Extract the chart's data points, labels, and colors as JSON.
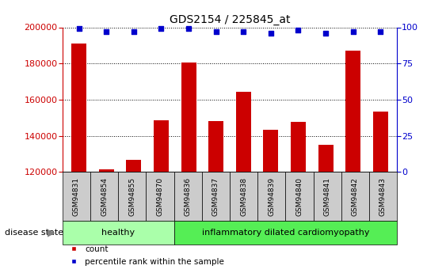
{
  "title": "GDS2154 / 225845_at",
  "categories": [
    "GSM94831",
    "GSM94854",
    "GSM94855",
    "GSM94870",
    "GSM94836",
    "GSM94837",
    "GSM94838",
    "GSM94839",
    "GSM94840",
    "GSM94841",
    "GSM94842",
    "GSM94843"
  ],
  "counts": [
    191000,
    121500,
    126500,
    148500,
    180500,
    148000,
    164500,
    143500,
    147500,
    135000,
    187000,
    153500
  ],
  "percentiles": [
    99,
    97,
    97,
    99,
    99,
    97,
    97,
    96,
    98,
    96,
    97,
    97
  ],
  "healthy_count": 4,
  "ylim_left": [
    120000,
    200000
  ],
  "ylim_right": [
    0,
    100
  ],
  "yticks_left": [
    120000,
    140000,
    160000,
    180000,
    200000
  ],
  "yticks_right": [
    0,
    25,
    50,
    75,
    100
  ],
  "bar_color": "#cc0000",
  "dot_color": "#0000cc",
  "healthy_label": "healthy",
  "disease_label": "inflammatory dilated cardiomyopathy",
  "healthy_bg": "#aaffaa",
  "disease_bg": "#55ee55",
  "xticklabel_bg": "#cccccc",
  "legend_count": "count",
  "legend_percentile": "percentile rank within the sample",
  "disease_state_label": "disease state",
  "bar_width": 0.55
}
